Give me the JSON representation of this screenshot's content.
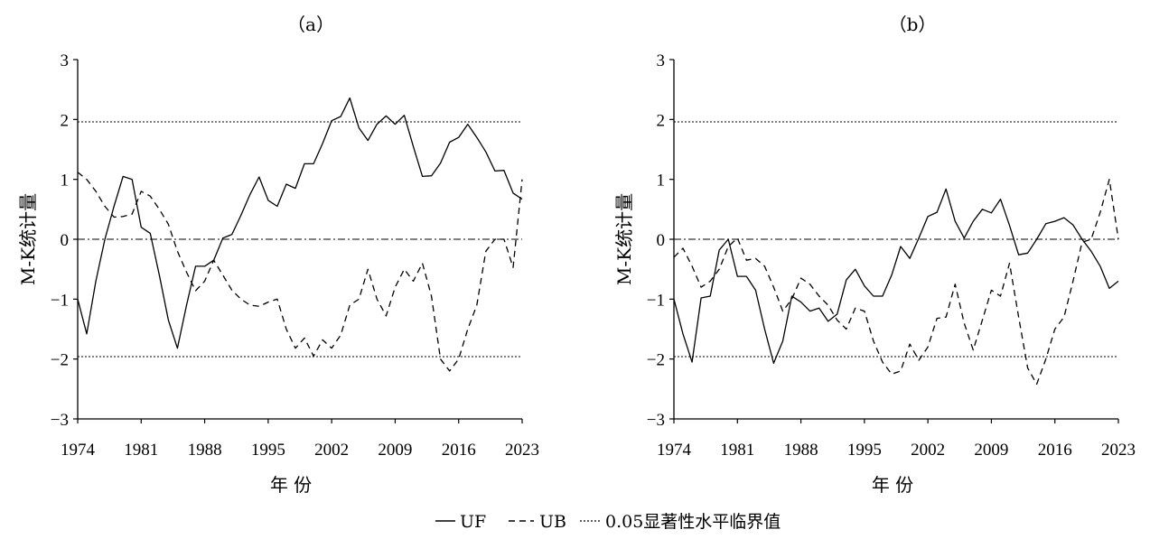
{
  "legend": {
    "uf_label": "UF",
    "ub_label": "UB",
    "crit_label": "0.05显著性水平临界值"
  },
  "chart_data": [
    {
      "type": "line",
      "title": "（a）",
      "xlabel": "年 份",
      "ylabel": "M-K统计量",
      "xlim": [
        1974,
        2023
      ],
      "ylim": [
        -3,
        3
      ],
      "x_ticks": [
        1974,
        1981,
        1988,
        1995,
        2002,
        2009,
        2016,
        2023
      ],
      "y_ticks": [
        3,
        2,
        1,
        0,
        -1,
        -2,
        -3
      ],
      "critical_values": [
        1.96,
        -1.96
      ],
      "zero_line": 0,
      "x": [
        1974,
        1975,
        1976,
        1977,
        1978,
        1979,
        1980,
        1981,
        1982,
        1983,
        1984,
        1985,
        1986,
        1987,
        1988,
        1989,
        1990,
        1991,
        1992,
        1993,
        1994,
        1995,
        1996,
        1997,
        1998,
        1999,
        2000,
        2001,
        2002,
        2003,
        2004,
        2005,
        2006,
        2007,
        2008,
        2009,
        2010,
        2011,
        2012,
        2013,
        2014,
        2015,
        2016,
        2017,
        2018,
        2019,
        2020,
        2021,
        2022,
        2023
      ],
      "series": [
        {
          "name": "UF",
          "style": "solid",
          "values": [
            -1.0,
            -1.58,
            -0.7,
            0.0,
            0.55,
            1.05,
            1.0,
            0.2,
            0.1,
            -0.6,
            -1.35,
            -1.82,
            -1.1,
            -0.45,
            -0.45,
            -0.35,
            0.02,
            0.08,
            0.4,
            0.75,
            1.04,
            0.65,
            0.55,
            0.92,
            0.85,
            1.26,
            1.26,
            1.6,
            1.98,
            2.05,
            2.36,
            1.86,
            1.65,
            1.92,
            2.06,
            1.92,
            2.07,
            1.55,
            1.05,
            1.06,
            1.27,
            1.62,
            1.7,
            1.92,
            1.7,
            1.46,
            1.14,
            1.15,
            0.77,
            0.67
          ]
        },
        {
          "name": "UB",
          "style": "dashed",
          "values": [
            1.12,
            1.0,
            0.8,
            0.55,
            0.37,
            0.38,
            0.42,
            0.8,
            0.72,
            0.5,
            0.25,
            -0.2,
            -0.55,
            -0.86,
            -0.7,
            -0.35,
            -0.6,
            -0.85,
            -1.0,
            -1.1,
            -1.12,
            -1.05,
            -1.0,
            -1.5,
            -1.82,
            -1.65,
            -1.95,
            -1.68,
            -1.82,
            -1.6,
            -1.1,
            -1.0,
            -0.5,
            -1.0,
            -1.28,
            -0.8,
            -0.5,
            -0.7,
            -0.4,
            -0.95,
            -2.0,
            -2.2,
            -2.0,
            -1.5,
            -1.1,
            -0.2,
            0.0,
            0.0,
            -0.47,
            1.0
          ]
        }
      ]
    },
    {
      "type": "line",
      "title": "（b）",
      "xlabel": "年 份",
      "ylabel": "M-K统计量",
      "xlim": [
        1974,
        2023
      ],
      "ylim": [
        -3,
        3
      ],
      "x_ticks": [
        1974,
        1981,
        1988,
        1995,
        2002,
        2009,
        2016,
        2023
      ],
      "y_ticks": [
        3,
        2,
        1,
        0,
        -1,
        -2,
        -3
      ],
      "critical_values": [
        1.96,
        -1.96
      ],
      "zero_line": 0,
      "x": [
        1974,
        1975,
        1976,
        1977,
        1978,
        1979,
        1980,
        1981,
        1982,
        1983,
        1984,
        1985,
        1986,
        1987,
        1988,
        1989,
        1990,
        1991,
        1992,
        1993,
        1994,
        1995,
        1996,
        1997,
        1998,
        1999,
        2000,
        2001,
        2002,
        2003,
        2004,
        2005,
        2006,
        2007,
        2008,
        2009,
        2010,
        2011,
        2012,
        2013,
        2014,
        2015,
        2016,
        2017,
        2018,
        2019,
        2020,
        2021,
        2022,
        2023
      ],
      "series": [
        {
          "name": "UF",
          "style": "solid",
          "values": [
            -1.0,
            -1.58,
            -2.05,
            -0.98,
            -0.95,
            -0.18,
            0.0,
            -0.62,
            -0.62,
            -0.85,
            -1.5,
            -2.07,
            -1.7,
            -0.95,
            -1.05,
            -1.2,
            -1.15,
            -1.37,
            -1.25,
            -0.68,
            -0.5,
            -0.78,
            -0.95,
            -0.95,
            -0.6,
            -0.12,
            -0.32,
            0.02,
            0.38,
            0.45,
            0.84,
            0.3,
            0.02,
            0.3,
            0.5,
            0.44,
            0.67,
            0.23,
            -0.26,
            -0.23,
            0.0,
            0.26,
            0.3,
            0.36,
            0.24,
            0.0,
            -0.2,
            -0.45,
            -0.82,
            -0.7
          ]
        },
        {
          "name": "UB",
          "style": "dashed",
          "values": [
            -0.3,
            -0.15,
            -0.45,
            -0.8,
            -0.7,
            -0.5,
            -0.12,
            0.02,
            -0.35,
            -0.32,
            -0.45,
            -0.8,
            -1.2,
            -1.0,
            -0.65,
            -0.75,
            -0.95,
            -1.1,
            -1.35,
            -1.5,
            -1.15,
            -1.2,
            -1.7,
            -2.05,
            -2.25,
            -2.2,
            -1.75,
            -2.02,
            -1.8,
            -1.32,
            -1.3,
            -0.75,
            -1.4,
            -1.85,
            -1.35,
            -0.85,
            -0.95,
            -0.4,
            -1.3,
            -2.15,
            -2.42,
            -2.0,
            -1.5,
            -1.3,
            -0.7,
            -0.05,
            0.0,
            0.45,
            1.0,
            0.0
          ]
        }
      ]
    }
  ]
}
